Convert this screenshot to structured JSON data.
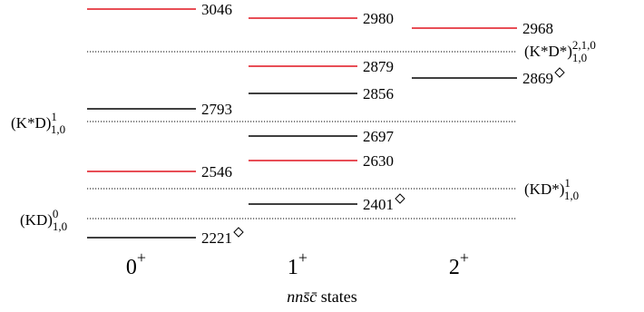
{
  "colors": {
    "red": "#e0141e",
    "black": "#000000"
  },
  "jp_labels": [
    {
      "id": "0",
      "base": "0",
      "sup": "+"
    },
    {
      "id": "1",
      "base": "1",
      "sup": "+"
    },
    {
      "id": "2",
      "base": "2",
      "sup": "+"
    }
  ],
  "axis_title": {
    "italic": "nn",
    "cbar": "s̄c̄",
    "rest": " states"
  },
  "levels": [
    {
      "col": 0,
      "value": "3046",
      "color": "red"
    },
    {
      "col": 0,
      "value": "2793",
      "color": "black"
    },
    {
      "col": 0,
      "value": "2546",
      "color": "red"
    },
    {
      "col": 0,
      "value": "2221",
      "color": "black",
      "diamond": true
    },
    {
      "col": 1,
      "value": "2980",
      "color": "red"
    },
    {
      "col": 1,
      "value": "2879",
      "color": "red"
    },
    {
      "col": 1,
      "value": "2856",
      "color": "black"
    },
    {
      "col": 1,
      "value": "2697",
      "color": "black"
    },
    {
      "col": 1,
      "value": "2630",
      "color": "red"
    },
    {
      "col": 1,
      "value": "2401",
      "color": "black",
      "diamond": true
    },
    {
      "col": 2,
      "value": "2968",
      "color": "red"
    },
    {
      "col": 2,
      "value": "2869",
      "color": "black",
      "diamond": true
    }
  ],
  "thresholds": [
    {
      "id": "ksd-star",
      "base": "(K*D*)",
      "sup": "2,1,0",
      "sub": "1,0",
      "side": "right"
    },
    {
      "id": "ksd",
      "base": "(K*D)",
      "sup": "1",
      "sub": "1,0",
      "side": "left"
    },
    {
      "id": "kd-star",
      "base": "(KD*)",
      "sup": "1",
      "sub": "1,0",
      "side": "right"
    },
    {
      "id": "kd",
      "base": "(KD)",
      "sup": "0",
      "sub": "1,0",
      "side": "left"
    }
  ]
}
